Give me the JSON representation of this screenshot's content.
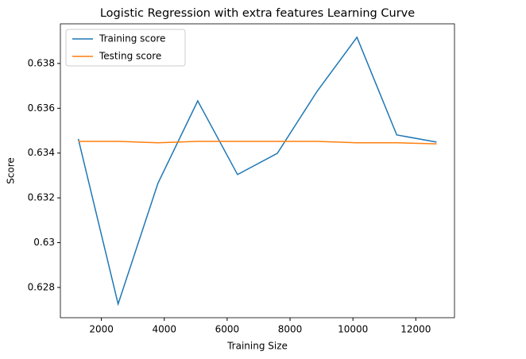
{
  "chart_data": {
    "type": "line",
    "title": "Logistic Regression with extra features Learning Curve",
    "x_label": "Training Size",
    "y_label": "Score",
    "x": [
      1266,
      2532,
      3798,
      5064,
      6330,
      7596,
      8862,
      10128,
      11394,
      12660
    ],
    "series": [
      {
        "name": "Training score",
        "color": "#1f77b4",
        "values": [
          0.63463,
          0.62726,
          0.63265,
          0.63633,
          0.63304,
          0.63399,
          0.63676,
          0.63917,
          0.63481,
          0.63449
        ]
      },
      {
        "name": "Testing score",
        "color": "#ff7f0e",
        "values": [
          0.63452,
          0.63452,
          0.63446,
          0.63452,
          0.63452,
          0.63452,
          0.63452,
          0.63446,
          0.63446,
          0.63441
        ]
      }
    ],
    "xlim": [
      696,
      13230
    ],
    "xticks": [
      2000,
      4000,
      6000,
      8000,
      10000,
      12000
    ],
    "ylim": [
      0.62665,
      0.63977
    ],
    "yticks": [
      0.628,
      0.63,
      0.632,
      0.634,
      0.636,
      0.638
    ],
    "legend": "upper left",
    "grid": false
  }
}
